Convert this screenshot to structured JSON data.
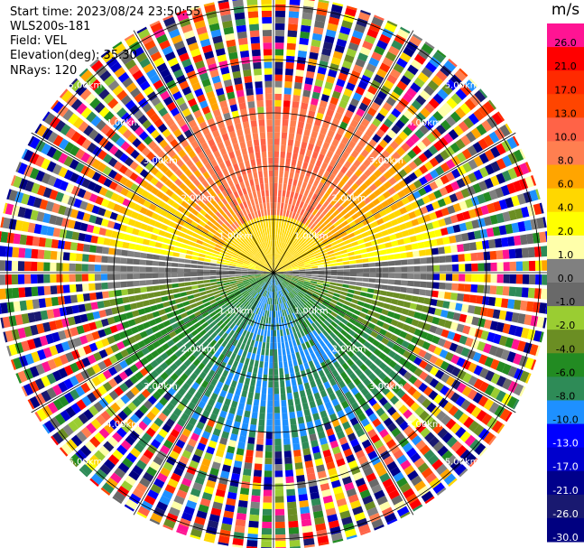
{
  "info": {
    "start_time": "Start time: 2023/08/24 23:50:55",
    "instrument": "WLS200s-181",
    "field": "Field: VEL",
    "elevation": "Elevation(deg): 35.30",
    "nrays": "NRays: 120"
  },
  "colorbar": {
    "unit": "m/s",
    "bins": [
      {
        "label": "26.0",
        "color": "#ff1493"
      },
      {
        "label": "21.0",
        "color": "#ff0000"
      },
      {
        "label": "17.0",
        "color": "#ff2a00"
      },
      {
        "label": "13.0",
        "color": "#ff4500"
      },
      {
        "label": "10.0",
        "color": "#ff6347"
      },
      {
        "label": "8.0",
        "color": "#ff7f50"
      },
      {
        "label": "6.0",
        "color": "#ffa500"
      },
      {
        "label": "4.0",
        "color": "#ffd700"
      },
      {
        "label": "2.0",
        "color": "#ffff00"
      },
      {
        "label": "1.0",
        "color": "#ffffaa"
      },
      {
        "label": "0.0",
        "color": "#808080"
      },
      {
        "label": "-1.0",
        "color": "#696969"
      },
      {
        "label": "-2.0",
        "color": "#9acd32"
      },
      {
        "label": "-4.0",
        "color": "#6b8e23"
      },
      {
        "label": "-6.0",
        "color": "#228b22"
      },
      {
        "label": "-8.0",
        "color": "#2e8b57"
      },
      {
        "label": "-10.0",
        "color": "#1e90ff"
      },
      {
        "label": "-13.0",
        "color": "#0000ff"
      },
      {
        "label": "-17.0",
        "color": "#0000cd"
      },
      {
        "label": "-21.0",
        "color": "#00008b"
      },
      {
        "label": "-26.0",
        "color": "#191970"
      },
      {
        "label": "-30.0",
        "color": "#000080"
      }
    ]
  },
  "chart_data": {
    "type": "heatmap",
    "title": "",
    "field": "VEL",
    "instrument": "WLS200s-181",
    "elevation_deg": 35.3,
    "n_rays": 120,
    "range_rings_km": [
      1,
      2,
      3,
      4,
      5
    ],
    "ring_labels": [
      "1.00km",
      "2.00km",
      "3.00km",
      "4.00km",
      "5.00km"
    ],
    "azimuth_spokes_deg": [
      0,
      30,
      60,
      90,
      120,
      150,
      180,
      210,
      240,
      270,
      300,
      330
    ],
    "max_range_km": 5.2,
    "colorbar_unit": "m/s",
    "colorbar_levels": [
      26,
      21,
      17,
      13,
      10,
      8,
      6,
      4,
      2,
      1,
      0,
      -1,
      -2,
      -4,
      -6,
      -8,
      -10,
      -13,
      -17,
      -21,
      -26,
      -30
    ],
    "regions": [
      {
        "sector": "north",
        "range_km": [
          0,
          3.3
        ],
        "velocity_ms": "6 to 10"
      },
      {
        "sector": "near-horizon",
        "range_km": [
          0,
          1.7
        ],
        "velocity_ms": "-1 to 2"
      },
      {
        "sector": "south",
        "range_km": [
          0,
          3.3
        ],
        "velocity_ms": "-2 to -8"
      },
      {
        "sector": "south-southeast",
        "range_km": [
          1.2,
          1.8
        ],
        "velocity_ms": "-10"
      },
      {
        "sector": "all",
        "range_km": [
          3.3,
          5.2
        ],
        "velocity_ms": "noise"
      }
    ]
  }
}
